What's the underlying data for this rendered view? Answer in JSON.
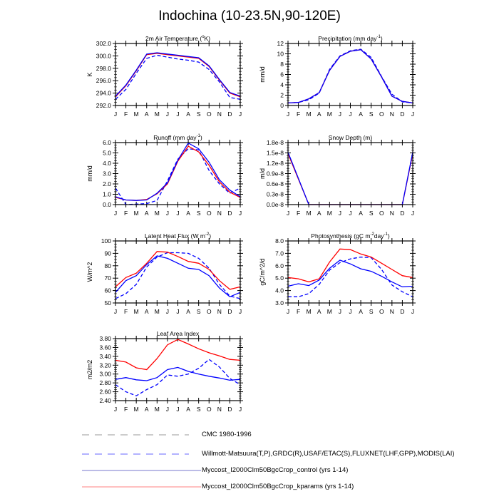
{
  "title": "Indochina (10-23.5N,90-120E)",
  "colors": {
    "kparams": "#ff0000",
    "control": "#0000ff",
    "obs": "#0000ff",
    "cmc": "#999999"
  },
  "legend": [
    {
      "label": "CMC 1980-1996",
      "style": "dashed",
      "color": "#999999"
    },
    {
      "label": "Willmott-Matsuura(T,P),GRDC(R),USAF/ETAC(S),FLUXNET(LHF,GPP),MODIS(LAI)",
      "style": "dashed",
      "color": "#6666ff"
    },
    {
      "label": "Myccost_I2000Clm50BgcCrop_control (yrs 1-14)",
      "style": "solid",
      "color": "#7777cc"
    },
    {
      "label": "Myccost_I2000Clm50BgcCrop_kparams (yrs 1-14)",
      "style": "solid",
      "color": "#ff8080"
    }
  ],
  "chart_data": [
    {
      "type": "line",
      "title": [
        "2m Air Temperature (",
        "o",
        "K)"
      ],
      "ylabel": "K",
      "x": [
        "J",
        "F",
        "M",
        "A",
        "M",
        "J",
        "J",
        "A",
        "S",
        "O",
        "N",
        "D",
        "J"
      ],
      "ylim": [
        292,
        302
      ],
      "yticks": [
        "292.0",
        "294.0",
        "296.0",
        "298.0",
        "300.0",
        "302.0"
      ],
      "ystep": 2,
      "series": [
        {
          "name": "obs",
          "style": "dashed",
          "values": [
            293.0,
            294.6,
            297.2,
            299.6,
            300.1,
            299.8,
            299.5,
            299.3,
            299.0,
            297.8,
            295.8,
            293.3,
            293.0
          ]
        },
        {
          "name": "kparams",
          "style": "solid",
          "values": [
            293.4,
            295.2,
            297.6,
            300.2,
            300.4,
            300.2,
            300.0,
            299.8,
            299.6,
            298.3,
            296.1,
            294.0,
            293.4
          ]
        },
        {
          "name": "control",
          "style": "solid",
          "values": [
            293.5,
            295.3,
            297.7,
            300.3,
            300.5,
            300.3,
            300.1,
            299.9,
            299.7,
            298.4,
            296.2,
            294.1,
            293.5
          ]
        }
      ]
    },
    {
      "type": "line",
      "title": [
        "Precipitation (mm day",
        "-1",
        ")"
      ],
      "ylabel": "mm/d",
      "x": [
        "J",
        "F",
        "M",
        "A",
        "M",
        "J",
        "J",
        "A",
        "S",
        "O",
        "N",
        "D",
        "J"
      ],
      "ylim": [
        0,
        12
      ],
      "yticks": [
        "0",
        "2",
        "4",
        "6",
        "8",
        "10",
        "12"
      ],
      "ystep": 2,
      "series": [
        {
          "name": "obs",
          "style": "dashed",
          "values": [
            0.5,
            0.6,
            1.1,
            2.4,
            7.0,
            9.6,
            10.6,
            10.9,
            9.3,
            5.6,
            2.2,
            0.7,
            0.5
          ]
        },
        {
          "name": "kparams",
          "style": "solid",
          "values": [
            0.5,
            0.6,
            1.3,
            2.5,
            6.8,
            9.5,
            10.5,
            10.8,
            9.0,
            5.5,
            1.8,
            0.8,
            0.5
          ]
        },
        {
          "name": "control",
          "style": "solid",
          "values": [
            0.5,
            0.6,
            1.3,
            2.5,
            6.8,
            9.5,
            10.5,
            10.8,
            9.0,
            5.5,
            1.8,
            0.8,
            0.5
          ]
        }
      ]
    },
    {
      "type": "line",
      "title": [
        "Runoff (mm day",
        "-1",
        ")"
      ],
      "ylabel": "mm/d",
      "x": [
        "J",
        "F",
        "M",
        "A",
        "M",
        "J",
        "J",
        "A",
        "S",
        "O",
        "N",
        "D",
        "J"
      ],
      "ylim": [
        0,
        6
      ],
      "yticks": [
        "0.0",
        "1.0",
        "2.0",
        "3.0",
        "4.0",
        "5.0",
        "6.0"
      ],
      "ystep": 1,
      "series": [
        {
          "name": "obs",
          "style": "dashed",
          "values": [
            1.6,
            0.0,
            0.05,
            0.1,
            0.4,
            2.3,
            4.4,
            5.4,
            5.3,
            3.3,
            2.0,
            1.1,
            1.6
          ]
        },
        {
          "name": "kparams",
          "style": "solid",
          "values": [
            0.7,
            0.45,
            0.4,
            0.5,
            1.05,
            2.0,
            4.2,
            5.65,
            5.1,
            3.8,
            2.2,
            1.2,
            0.7
          ]
        },
        {
          "name": "control",
          "style": "solid",
          "values": [
            0.75,
            0.45,
            0.4,
            0.45,
            1.1,
            2.1,
            4.3,
            5.95,
            5.4,
            4.1,
            2.4,
            1.4,
            0.75
          ]
        }
      ]
    },
    {
      "type": "line",
      "title": [
        "Snow Depth (m)"
      ],
      "ylabel": "m/d",
      "x": [
        "J",
        "F",
        "M",
        "A",
        "M",
        "J",
        "J",
        "A",
        "S",
        "O",
        "N",
        "D",
        "J"
      ],
      "ylim": [
        0,
        1.8
      ],
      "yunit": "1e-8",
      "yticks": [
        "0.0e-8",
        "0.3e-8",
        "0.6e-8",
        "0.9e-8",
        "1.2e-8",
        "1.5e-8",
        "1.8e-8"
      ],
      "ystep": 0.3,
      "series": [
        {
          "name": "kparams",
          "style": "solid",
          "values": [
            1.48,
            0.74,
            0,
            0,
            0,
            0,
            0,
            0,
            0,
            0,
            0,
            0,
            1.48
          ]
        },
        {
          "name": "control",
          "style": "solid",
          "values": [
            1.52,
            0.76,
            0,
            0,
            0,
            0,
            0,
            0,
            0,
            0,
            0,
            0,
            1.52
          ]
        }
      ]
    },
    {
      "type": "line",
      "title": [
        "Latent Heat Flux (W m",
        "-2",
        ")"
      ],
      "ylabel": "W/m^2",
      "x": [
        "J",
        "F",
        "M",
        "A",
        "M",
        "J",
        "J",
        "A",
        "S",
        "O",
        "N",
        "D",
        "J"
      ],
      "ylim": [
        50,
        100
      ],
      "yticks": [
        "50",
        "60",
        "70",
        "80",
        "90",
        "100"
      ],
      "ystep": 10,
      "series": [
        {
          "name": "obs",
          "style": "dashed",
          "values": [
            53.5,
            57.5,
            65,
            79,
            87,
            90.5,
            90.5,
            90,
            86,
            78,
            65,
            55.5,
            53.5
          ]
        },
        {
          "name": "kparams",
          "style": "solid",
          "values": [
            63,
            70.5,
            74,
            82,
            91.5,
            91,
            87.5,
            83.5,
            82,
            77,
            68,
            61,
            63
          ]
        },
        {
          "name": "control",
          "style": "solid",
          "values": [
            58.5,
            68,
            72,
            81,
            88,
            86,
            82,
            78,
            77,
            72,
            62,
            55,
            58.5
          ]
        }
      ]
    },
    {
      "type": "line",
      "title": [
        "Photosynthesis (gC m",
        "-2",
        "day",
        "-1",
        ")"
      ],
      "ylabel": "gC/m^2/d",
      "x": [
        "J",
        "F",
        "M",
        "A",
        "M",
        "J",
        "J",
        "A",
        "S",
        "O",
        "N",
        "D",
        "J"
      ],
      "ylim": [
        3,
        8
      ],
      "yticks": [
        "3.0",
        "4.0",
        "5.0",
        "6.0",
        "7.0",
        "8.0"
      ],
      "ystep": 1,
      "series": [
        {
          "name": "obs",
          "style": "dashed",
          "values": [
            3.5,
            3.5,
            3.75,
            4.5,
            5.65,
            6.25,
            6.55,
            6.7,
            6.65,
            5.7,
            4.45,
            3.9,
            3.5
          ]
        },
        {
          "name": "kparams",
          "style": "solid",
          "values": [
            5.05,
            4.95,
            4.7,
            4.95,
            6.3,
            7.35,
            7.3,
            6.95,
            6.7,
            6.2,
            5.7,
            5.2,
            5.05
          ]
        },
        {
          "name": "control",
          "style": "solid",
          "values": [
            4.35,
            4.55,
            4.4,
            4.85,
            5.8,
            6.45,
            6.15,
            5.75,
            5.55,
            5.15,
            4.7,
            4.3,
            4.35
          ]
        }
      ]
    },
    {
      "type": "line",
      "title": [
        "Leaf Area Index"
      ],
      "ylabel": "m2/m2",
      "x": [
        "J",
        "F",
        "M",
        "A",
        "M",
        "J",
        "J",
        "A",
        "S",
        "O",
        "N",
        "D",
        "J"
      ],
      "ylim": [
        2.4,
        3.8
      ],
      "yticks": [
        "2.40",
        "2.60",
        "2.80",
        "3.00",
        "3.20",
        "3.40",
        "3.60",
        "3.80"
      ],
      "ystep": 0.2,
      "series": [
        {
          "name": "obs",
          "style": "dashed",
          "values": [
            2.76,
            2.6,
            2.51,
            2.65,
            2.76,
            2.98,
            2.95,
            3.0,
            3.13,
            3.33,
            3.16,
            2.9,
            2.76
          ]
        },
        {
          "name": "kparams",
          "style": "solid",
          "values": [
            3.31,
            3.27,
            3.14,
            3.1,
            3.35,
            3.66,
            3.78,
            3.68,
            3.57,
            3.48,
            3.41,
            3.33,
            3.31
          ]
        },
        {
          "name": "control",
          "style": "solid",
          "values": [
            2.88,
            2.92,
            2.87,
            2.85,
            2.92,
            3.1,
            3.15,
            3.06,
            3.0,
            2.95,
            2.91,
            2.86,
            2.88
          ]
        }
      ]
    }
  ]
}
